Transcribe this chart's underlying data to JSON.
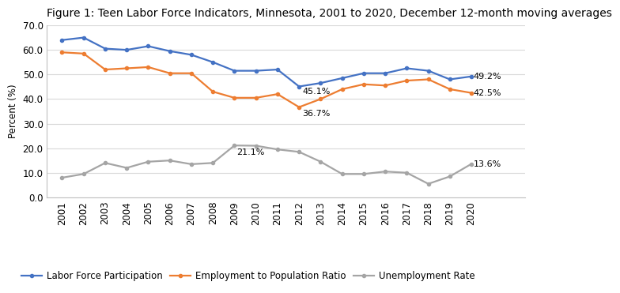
{
  "title": "Figure 1: Teen Labor Force Indicators, Minnesota, 2001 to 2020, December 12-month moving averages",
  "years": [
    2001,
    2002,
    2003,
    2004,
    2005,
    2006,
    2007,
    2008,
    2009,
    2010,
    2011,
    2012,
    2013,
    2014,
    2015,
    2016,
    2017,
    2018,
    2019,
    2020
  ],
  "labor_force_participation": [
    64.0,
    65.0,
    60.5,
    60.0,
    61.5,
    59.5,
    58.0,
    55.0,
    51.5,
    51.5,
    52.0,
    45.1,
    46.5,
    48.5,
    50.5,
    50.5,
    52.5,
    51.5,
    48.0,
    49.2
  ],
  "employment_to_population": [
    59.0,
    58.5,
    52.0,
    52.5,
    53.0,
    50.5,
    50.5,
    43.0,
    40.5,
    40.5,
    42.0,
    36.7,
    40.0,
    44.0,
    46.0,
    45.5,
    47.5,
    48.0,
    44.0,
    42.5
  ],
  "unemployment_rate": [
    8.0,
    9.5,
    14.0,
    12.0,
    14.5,
    15.0,
    13.5,
    14.0,
    21.1,
    21.0,
    19.5,
    18.5,
    14.5,
    9.5,
    9.5,
    10.5,
    10.0,
    5.5,
    8.5,
    13.6
  ],
  "lfp_color": "#4472C4",
  "emp_color": "#ED7D31",
  "unemp_color": "#A5A5A5",
  "lfp_label": "Labor Force Participation",
  "emp_label": "Employment to Population Ratio",
  "unemp_label": "Unemployment Rate",
  "ylabel": "Percent (%)",
  "ylim": [
    0.0,
    70.0
  ],
  "yticks": [
    0.0,
    10.0,
    20.0,
    30.0,
    40.0,
    50.0,
    60.0,
    70.0
  ],
  "background_color": "#FFFFFF",
  "grid_color": "#D9D9D9",
  "title_fontsize": 10.0,
  "axis_fontsize": 8.5,
  "legend_fontsize": 8.5,
  "ann_fontsize": 8.0,
  "line_width": 1.6
}
